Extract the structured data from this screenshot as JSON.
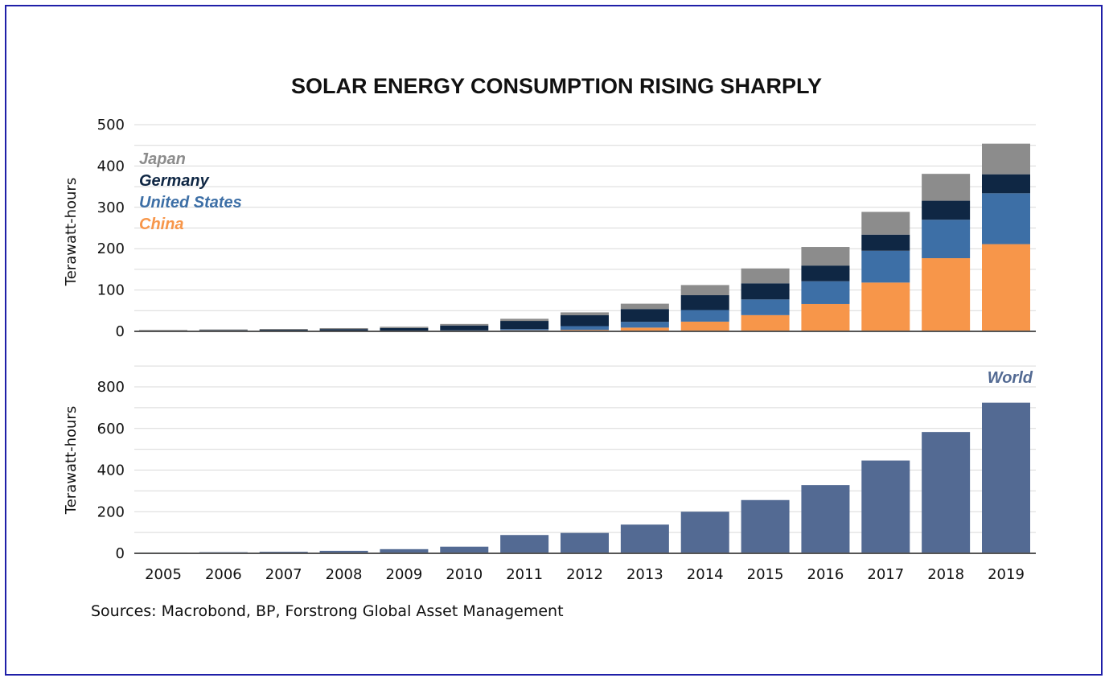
{
  "colors": {
    "china": "#f7964a",
    "united_states": "#3d6fa6",
    "germany": "#0f2744",
    "japan": "#8c8c8c",
    "world": "#536a93",
    "frame": "#1f1fa8"
  },
  "chart_data": [
    {
      "type": "bar",
      "stacked": true,
      "title": "SOLAR ENERGY CONSUMPTION RISING SHARPLY",
      "ylabel": "Terawatt-hours",
      "ylim": [
        0,
        500
      ],
      "yticks": [
        0,
        100,
        200,
        300,
        400,
        500
      ],
      "grid": true,
      "legend_position": "top-left",
      "categories": [
        "2005",
        "2006",
        "2007",
        "2008",
        "2009",
        "2010",
        "2011",
        "2012",
        "2013",
        "2014",
        "2015",
        "2016",
        "2017",
        "2018",
        "2019"
      ],
      "series": [
        {
          "name": "China",
          "key": "china",
          "values": [
            0.1,
            0.1,
            0.1,
            0.2,
            0.3,
            0.7,
            2.6,
            3.6,
            9,
            23.5,
            39.2,
            66.2,
            118,
            177,
            211
          ]
        },
        {
          "name": "United States",
          "key": "united_states",
          "values": [
            0.5,
            0.5,
            0.6,
            0.9,
            1.2,
            1.8,
            3,
            9,
            14,
            28,
            38,
            55,
            77,
            93,
            123
          ]
        },
        {
          "name": "Germany",
          "key": "germany",
          "values": [
            1.3,
            2.2,
            3.1,
            4.4,
            6.6,
            11.7,
            19.6,
            26.4,
            31,
            36,
            39,
            38,
            39,
            46,
            46
          ]
        },
        {
          "name": "Japan",
          "key": "japan",
          "values": [
            1.5,
            1.8,
            2,
            2.3,
            3,
            3.6,
            5.2,
            6.9,
            12.9,
            24.5,
            36,
            45,
            55,
            65,
            74
          ]
        }
      ],
      "legend_order": [
        "Japan",
        "Germany",
        "United States",
        "China"
      ]
    },
    {
      "type": "bar",
      "ylabel": "Terawatt-hours",
      "ylim": [
        0,
        800
      ],
      "yticks": [
        0,
        200,
        400,
        600,
        800
      ],
      "grid": true,
      "legend_position": "top-right",
      "categories": [
        "2005",
        "2006",
        "2007",
        "2008",
        "2009",
        "2010",
        "2011",
        "2012",
        "2013",
        "2014",
        "2015",
        "2016",
        "2017",
        "2018",
        "2019"
      ],
      "series": [
        {
          "name": "World",
          "key": "world",
          "values": [
            4,
            5.5,
            7.5,
            12,
            20,
            32,
            88,
            98,
            138,
            200,
            256,
            328,
            446,
            583,
            724
          ]
        }
      ]
    }
  ],
  "source": "Sources: Macrobond, BP, Forstrong Global Asset Management"
}
